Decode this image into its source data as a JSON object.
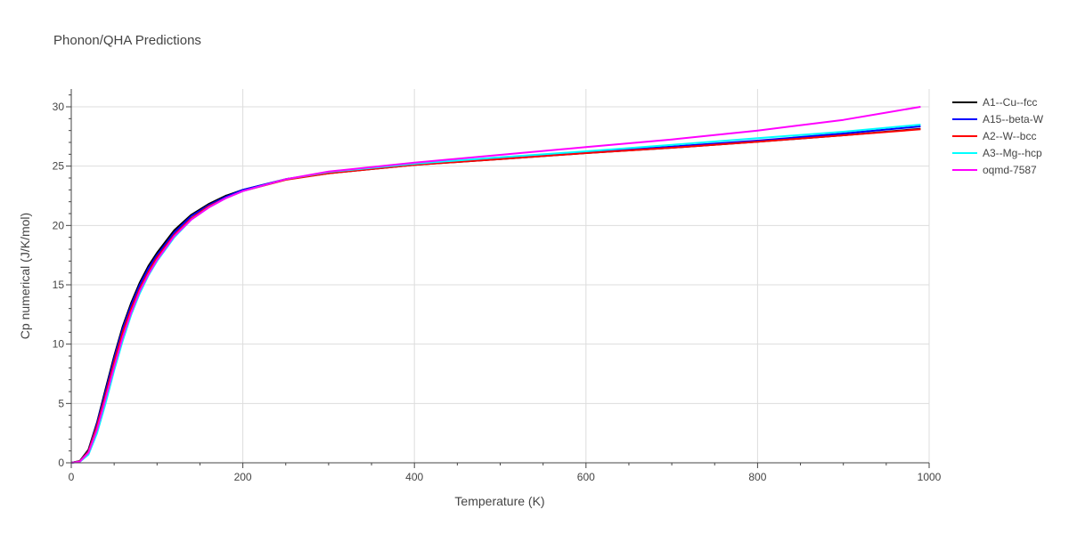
{
  "chart_data": {
    "type": "line",
    "title": "Phonon/QHA Predictions",
    "xlabel": "Temperature (K)",
    "ylabel": "Cp numerical (J/K/mol)",
    "xlim": [
      0,
      1000
    ],
    "ylim": [
      0,
      31.5
    ],
    "x_ticks": [
      0,
      200,
      400,
      600,
      800,
      1000
    ],
    "y_ticks": [
      0,
      5,
      10,
      15,
      20,
      25,
      30
    ],
    "grid": true,
    "legend_position": "top-right",
    "x": [
      0,
      10,
      20,
      30,
      40,
      50,
      60,
      70,
      80,
      90,
      100,
      120,
      140,
      160,
      180,
      200,
      250,
      300,
      400,
      500,
      600,
      700,
      800,
      900,
      990
    ],
    "series": [
      {
        "name": "A1--Cu--fcc",
        "color": "#000000",
        "values": [
          0,
          0.15,
          1.1,
          3.4,
          6.2,
          9.0,
          11.5,
          13.5,
          15.2,
          16.6,
          17.7,
          19.6,
          20.9,
          21.8,
          22.5,
          23.0,
          23.9,
          24.4,
          25.1,
          25.6,
          26.1,
          26.55,
          27.05,
          27.6,
          28.15
        ]
      },
      {
        "name": "A15--beta-W",
        "color": "#0000ff",
        "values": [
          0,
          0.13,
          1.0,
          3.3,
          6.0,
          8.8,
          11.3,
          13.3,
          15.0,
          16.4,
          17.5,
          19.4,
          20.8,
          21.7,
          22.4,
          23.0,
          23.9,
          24.45,
          25.15,
          25.65,
          26.15,
          26.65,
          27.15,
          27.75,
          28.35
        ]
      },
      {
        "name": "A2--W--bcc",
        "color": "#ff0000",
        "values": [
          0,
          0.12,
          0.95,
          3.1,
          5.7,
          8.5,
          11.0,
          13.0,
          14.7,
          16.1,
          17.3,
          19.2,
          20.6,
          21.6,
          22.3,
          22.9,
          23.85,
          24.4,
          25.1,
          25.6,
          26.1,
          26.55,
          27.05,
          27.6,
          28.1
        ]
      },
      {
        "name": "A3--Mg--hcp",
        "color": "#00ffff",
        "values": [
          0,
          0.08,
          0.7,
          2.5,
          5.0,
          7.8,
          10.3,
          12.5,
          14.3,
          15.8,
          17.0,
          19.0,
          20.5,
          21.5,
          22.3,
          22.9,
          23.9,
          24.5,
          25.2,
          25.75,
          26.25,
          26.8,
          27.35,
          27.9,
          28.5
        ]
      },
      {
        "name": "oqmd-7587",
        "color": "#ff00ff",
        "values": [
          0,
          0.1,
          0.85,
          2.8,
          5.4,
          8.1,
          10.6,
          12.7,
          14.5,
          15.9,
          17.1,
          19.1,
          20.5,
          21.5,
          22.3,
          22.9,
          23.9,
          24.55,
          25.3,
          25.95,
          26.6,
          27.25,
          28.0,
          28.9,
          30.0
        ]
      }
    ]
  }
}
